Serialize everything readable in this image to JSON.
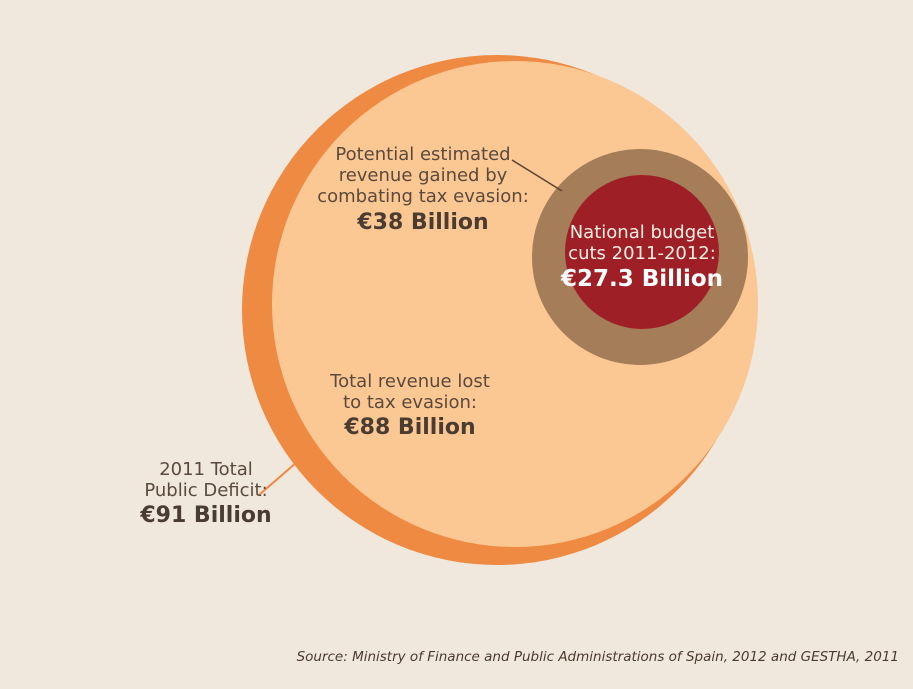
{
  "chart_data": {
    "type": "nested-circles",
    "unit": "€ Billion",
    "items": [
      {
        "key": "deficit",
        "lines": [
          "2011 Total",
          "Public Deficit:"
        ],
        "value_label": "€91 Billion",
        "value": 91,
        "color": "#ef8a43"
      },
      {
        "key": "lost",
        "lines": [
          "Total revenue lost",
          "to tax evasion:"
        ],
        "value_label": "€88 Billion",
        "value": 88,
        "color": "#fbc793"
      },
      {
        "key": "potential",
        "lines": [
          "Potential estimated",
          "revenue gained by",
          "combating tax evasion:"
        ],
        "value_label": "€38 Billion",
        "value": 38,
        "color": "#a57d59"
      },
      {
        "key": "cuts",
        "lines": [
          "National budget",
          "cuts 2011-2012:"
        ],
        "value_label": "€27.3 Billion",
        "value": 27.3,
        "color": "#9e2026"
      }
    ]
  },
  "source": "Source: Ministry of Finance and Public Administrations of Spain, 2012 and GESTHA, 2011"
}
